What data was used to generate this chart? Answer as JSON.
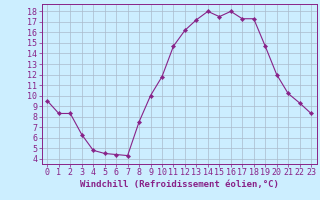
{
  "x": [
    0,
    1,
    2,
    3,
    4,
    5,
    6,
    7,
    8,
    9,
    10,
    11,
    12,
    13,
    14,
    15,
    16,
    17,
    18,
    19,
    20,
    21,
    22,
    23
  ],
  "y": [
    9.5,
    8.3,
    8.3,
    6.3,
    4.8,
    4.5,
    4.4,
    4.3,
    7.5,
    10.0,
    11.8,
    14.7,
    16.2,
    17.2,
    18.0,
    17.5,
    18.0,
    17.3,
    17.3,
    14.7,
    12.0,
    10.2,
    9.3,
    8.3
  ],
  "line_color": "#882288",
  "marker": "D",
  "marker_size": 2.2,
  "bg_color": "#cceeff",
  "grid_color": "#aabbcc",
  "xlabel": "Windchill (Refroidissement éolien,°C)",
  "ylabel_ticks": [
    4,
    5,
    6,
    7,
    8,
    9,
    10,
    11,
    12,
    13,
    14,
    15,
    16,
    17,
    18
  ],
  "ylim": [
    3.5,
    18.7
  ],
  "xlim": [
    -0.5,
    23.5
  ],
  "xticks": [
    0,
    1,
    2,
    3,
    4,
    5,
    6,
    7,
    8,
    9,
    10,
    11,
    12,
    13,
    14,
    15,
    16,
    17,
    18,
    19,
    20,
    21,
    22,
    23
  ],
  "axis_color": "#882288",
  "tick_color": "#882288",
  "xlabel_color": "#882288",
  "label_fontsize": 6.5,
  "tick_fontsize": 6.0
}
